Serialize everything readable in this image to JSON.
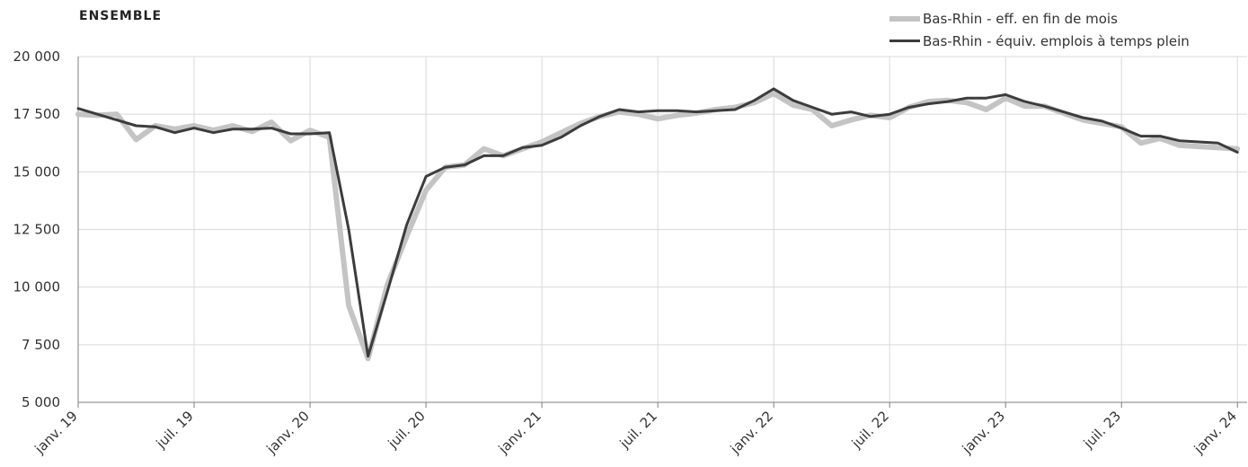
{
  "title": "ENSEMBLE",
  "chart_data": {
    "type": "line",
    "title": "ENSEMBLE",
    "xlabel": "",
    "ylabel": "",
    "ylim": [
      5000,
      20000
    ],
    "yticks": [
      5000,
      7500,
      10000,
      12500,
      15000,
      17500,
      20000
    ],
    "ytick_labels": [
      "5 000",
      "7 500",
      "10 000",
      "12 500",
      "15 000",
      "17 500",
      "20 000"
    ],
    "xlim": [
      0,
      60.5
    ],
    "xticks": [
      0,
      6,
      12,
      18,
      24,
      30,
      36,
      42,
      48,
      54,
      60
    ],
    "xtick_labels": [
      "janv. 19",
      "juil. 19",
      "janv. 20",
      "juil. 20",
      "janv. 21",
      "juil. 21",
      "janv. 22",
      "juil. 22",
      "janv. 23",
      "juil. 23",
      "janv. 24"
    ],
    "x": [
      0,
      1,
      2,
      3,
      4,
      5,
      6,
      7,
      8,
      9,
      10,
      11,
      12,
      13,
      14,
      15,
      16,
      17,
      18,
      19,
      20,
      21,
      22,
      23,
      24,
      25,
      26,
      27,
      28,
      29,
      30,
      31,
      32,
      33,
      34,
      35,
      36,
      37,
      38,
      39,
      40,
      41,
      42,
      43,
      44,
      45,
      46,
      47,
      48,
      49,
      50,
      51,
      52,
      53,
      54,
      55,
      56,
      57,
      58,
      59,
      60
    ],
    "grid": true,
    "legend_position": "top-right",
    "colors": {
      "eff": "#c4c4c4",
      "etp": "#3c3c3c"
    },
    "series": [
      {
        "name": "Bas-Rhin - eff. en fin de mois",
        "values": [
          17500,
          17450,
          17500,
          16400,
          17000,
          16850,
          17000,
          16800,
          17000,
          16750,
          17150,
          16350,
          16800,
          16500,
          9200,
          6900,
          10100,
          12200,
          14200,
          15200,
          15300,
          16000,
          15700,
          16000,
          16300,
          16700,
          17100,
          17400,
          17600,
          17500,
          17300,
          17450,
          17550,
          17700,
          17800,
          18000,
          18400,
          17900,
          17700,
          17000,
          17250,
          17450,
          17350,
          17800,
          18050,
          18100,
          18000,
          17700,
          18200,
          17850,
          17850,
          17550,
          17250,
          17100,
          16950,
          16250,
          16450,
          16150,
          16100,
          16050,
          16000
        ]
      },
      {
        "name": "Bas-Rhin - équiv. emplois à temps plein",
        "values": [
          17750,
          17500,
          17250,
          17000,
          16950,
          16700,
          16900,
          16700,
          16850,
          16850,
          16900,
          16650,
          16650,
          16700,
          12500,
          7000,
          9800,
          12700,
          14800,
          15200,
          15300,
          15700,
          15700,
          16050,
          16150,
          16500,
          17000,
          17400,
          17700,
          17600,
          17650,
          17650,
          17600,
          17650,
          17700,
          18100,
          18600,
          18100,
          17800,
          17500,
          17600,
          17400,
          17500,
          17800,
          17950,
          18050,
          18200,
          18200,
          18350,
          18050,
          17850,
          17600,
          17350,
          17200,
          16900,
          16550,
          16550,
          16350,
          16300,
          16250,
          15850
        ]
      }
    ]
  }
}
